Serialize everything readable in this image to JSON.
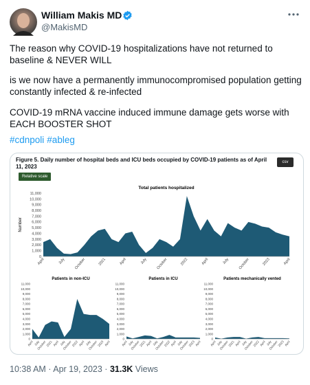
{
  "tweet": {
    "author": {
      "name": "William Makis MD",
      "handle": "@MakisMD"
    },
    "paragraphs": [
      "The reason why COVID-19 hospitalizations have not returned to baseline & NEVER WILL",
      "is we now have a permanently immunocompromised population getting constantly infected & re-infected",
      "COVID-19 mRNA vaccine induced immune damage gets worse with EACH BOOSTER SHOT"
    ],
    "hashtags": [
      "#cdnpoli",
      "#ableg"
    ],
    "meta": "10:38 AM · Apr 19, 2023 ·",
    "views_count": "31.3K",
    "views_label": "Views"
  },
  "figure": {
    "title": "Figure 5. Daily number of hospital beds and ICU beds occupied by COVID-19 patients as of April 11, 2023",
    "csv_button": "csv",
    "scale_button": "Relative scale",
    "charts": [
      {
        "type": "area",
        "title": "Total patients hospitalized",
        "y_label": "Number",
        "color": "#1e5a75",
        "ylim": [
          0,
          11000
        ],
        "yticks": [
          0,
          {
            "value": 1000,
            "label": "1,000"
          },
          {
            "value": 2000,
            "label": "2,000"
          },
          {
            "value": 3000,
            "label": "3,000"
          },
          {
            "value": 4000,
            "label": "4,000"
          },
          {
            "value": 5000,
            "label": "5,000"
          },
          {
            "value": 6000,
            "label": "6,000"
          },
          {
            "value": 7000,
            "label": "7,000"
          },
          {
            "value": 8000,
            "label": "8,000"
          },
          {
            "value": 9000,
            "label": "9,000"
          },
          {
            "value": 10000,
            "label": "10,000"
          },
          {
            "value": 11000,
            "label": "11,000"
          }
        ],
        "x_labels": [
          "April",
          "July",
          "October",
          "2021",
          "April",
          "July",
          "October",
          "2022",
          "April",
          "July",
          "October",
          "2023",
          "April"
        ],
        "values": [
          2500,
          3000,
          1500,
          500,
          400,
          700,
          2000,
          3500,
          4500,
          4800,
          3000,
          2500,
          4000,
          4300,
          2000,
          600,
          1500,
          3000,
          2500,
          1700,
          3000,
          10500,
          7000,
          4500,
          6500,
          4500,
          3500,
          5800,
          5000,
          4500,
          6000,
          5700,
          5200,
          5000,
          4200,
          3800,
          3500
        ]
      },
      {
        "type": "area",
        "title": "Patients in non-ICU",
        "color": "#1e5a75",
        "ylim": [
          0,
          11000
        ],
        "yticks": [
          0,
          {
            "value": 1000,
            "label": "1,000"
          },
          {
            "value": 2000,
            "label": "2,000"
          },
          {
            "value": 3000,
            "label": "3,000"
          },
          {
            "value": 4000,
            "label": "4,000"
          },
          {
            "value": 5000,
            "label": "5,000"
          },
          {
            "value": 6000,
            "label": "6,000"
          },
          {
            "value": 7000,
            "label": "7,000"
          },
          {
            "value": 8000,
            "label": "8,000"
          },
          {
            "value": 9000,
            "label": "9,000"
          },
          {
            "value": 10000,
            "label": "10,000"
          },
          {
            "value": 11000,
            "label": "11,000"
          }
        ],
        "x_labels": [
          "April",
          "July",
          "October",
          "2021",
          "April",
          "July",
          "October",
          "2022",
          "April",
          "July",
          "October",
          "2023",
          "April"
        ],
        "values": [
          2000,
          300,
          2800,
          3500,
          3300,
          400,
          2000,
          8000,
          5000,
          4800,
          4800,
          4000,
          3000
        ]
      },
      {
        "type": "area",
        "title": "Patients in ICU",
        "color": "#1e5a75",
        "ylim": [
          0,
          11000
        ],
        "yticks": [
          0,
          {
            "value": 1000,
            "label": "1,000"
          },
          {
            "value": 2000,
            "label": "2,000"
          },
          {
            "value": 3000,
            "label": "3,000"
          },
          {
            "value": 4000,
            "label": "4,000"
          },
          {
            "value": 5000,
            "label": "5,000"
          },
          {
            "value": 6000,
            "label": "6,000"
          },
          {
            "value": 7000,
            "label": "7,000"
          },
          {
            "value": 8000,
            "label": "8,000"
          },
          {
            "value": 9000,
            "label": "9,000"
          },
          {
            "value": 10000,
            "label": "10,000"
          },
          {
            "value": 11000,
            "label": "11,000"
          }
        ],
        "x_labels": [
          "April",
          "July",
          "October",
          "2021",
          "April",
          "July",
          "October",
          "2022",
          "April",
          "July",
          "October",
          "2023",
          "April"
        ],
        "values": [
          500,
          100,
          400,
          700,
          600,
          100,
          400,
          800,
          300,
          300,
          300,
          300,
          200
        ]
      },
      {
        "type": "area",
        "title": "Patients mechanically vented",
        "color": "#1e5a75",
        "ylim": [
          0,
          11000
        ],
        "yticks": [
          0,
          {
            "value": 1000,
            "label": "1,000"
          },
          {
            "value": 2000,
            "label": "2,000"
          },
          {
            "value": 3000,
            "label": "3,000"
          },
          {
            "value": 4000,
            "label": "4,000"
          },
          {
            "value": 5000,
            "label": "5,000"
          },
          {
            "value": 6000,
            "label": "6,000"
          },
          {
            "value": 7000,
            "label": "7,000"
          },
          {
            "value": 8000,
            "label": "8,000"
          },
          {
            "value": 9000,
            "label": "9,000"
          },
          {
            "value": 10000,
            "label": "10,000"
          },
          {
            "value": 11000,
            "label": "11,000"
          }
        ],
        "x_labels": [
          "April",
          "July",
          "October",
          "2021",
          "April",
          "July",
          "October",
          "2022",
          "April",
          "July",
          "October",
          "2023",
          "April"
        ],
        "values": [
          300,
          50,
          300,
          400,
          400,
          50,
          300,
          400,
          150,
          150,
          150,
          150,
          100
        ]
      }
    ]
  }
}
